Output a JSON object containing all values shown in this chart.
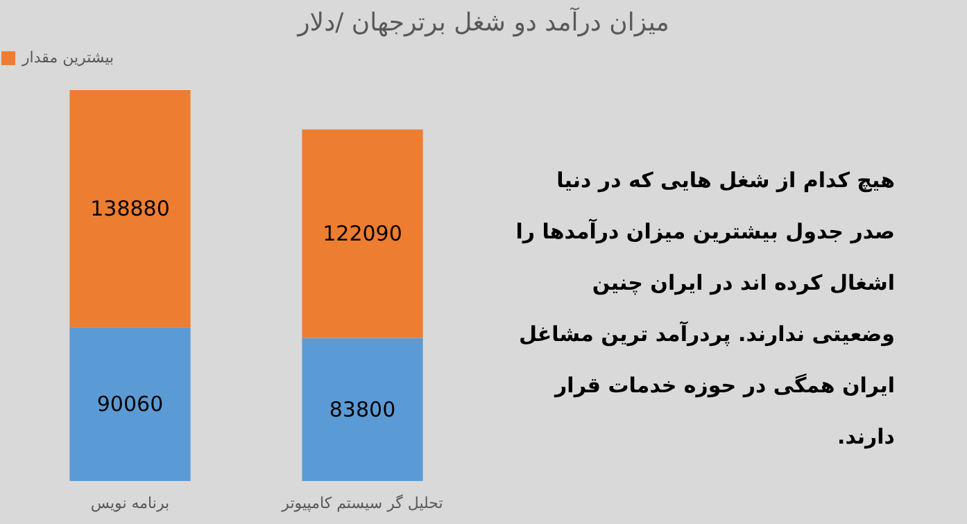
{
  "chart_data": {
    "type": "bar",
    "title": "میزان درآمد دو شغل برترجهان /دلار",
    "categories": [
      "برنامه نویس",
      "تحلیل گر سیستم کامپیوتر"
    ],
    "stacked": true,
    "data_labels": true,
    "legend": "top",
    "series": [
      {
        "color": "#5b9bd5",
        "values": [
          90060,
          83800
        ]
      },
      {
        "name": "بیشترین مقدار",
        "color": "#ed7d31",
        "values": [
          138880,
          122090
        ]
      }
    ],
    "annotations": [
      "هیچ کدام از شغل هایی که در دنیا صدر جدول بیشترین میزان درآمدها را اشغال کرده اند در ایران چنین وضعیتی ندارند. پردرآمد ترین مشاغل ایران همگی در حوزه خدمات قرار دارند."
    ]
  }
}
